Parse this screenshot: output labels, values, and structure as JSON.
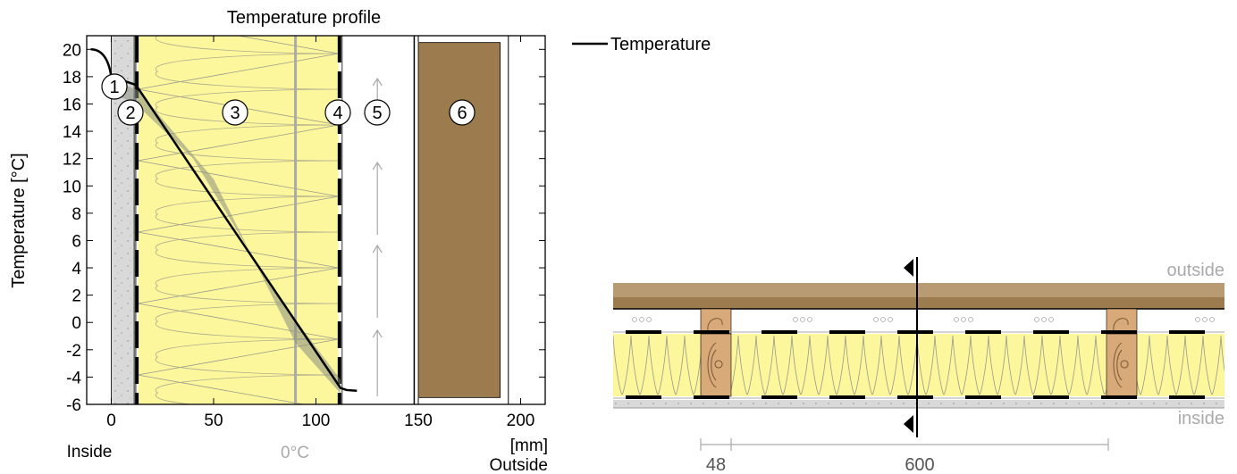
{
  "chart_data": {
    "type": "line",
    "title": "Temperature profile",
    "ylabel": "Temperature  [°C]",
    "xlabel": "[mm]",
    "xlim": [
      -12,
      212
    ],
    "ylim": [
      -6,
      21
    ],
    "x_ticks": [
      0,
      50,
      100,
      150,
      200
    ],
    "y_ticks": [
      20,
      18,
      16,
      14,
      12,
      10,
      8,
      6,
      4,
      2,
      0,
      -2,
      -4,
      -6
    ],
    "side_labels": {
      "inside": "Inside",
      "outside": "Outside",
      "zero": "0°C"
    },
    "legend": {
      "label": "Temperature",
      "position": "top-right"
    },
    "series": [
      {
        "name": "Temperature",
        "x": [
          -10,
          -5,
          0,
          12,
          112,
          115,
          120
        ],
        "y": [
          20.0,
          19.8,
          18.0,
          17.4,
          -4.8,
          -4.95,
          -5.0
        ]
      }
    ],
    "zero_line_x": 90,
    "layers": [
      {
        "label": "1",
        "x_from": 0,
        "x_to": 12,
        "color": "#d9d9d9"
      },
      {
        "label": "2",
        "x_from": 12,
        "x_to": 13,
        "color": "#000000"
      },
      {
        "label": "3",
        "x_from": 13,
        "x_to": 111,
        "color": "#fcf79d"
      },
      {
        "label": "4",
        "x_from": 111,
        "x_to": 112,
        "color": "#000000"
      },
      {
        "label": "5",
        "x_from": 112,
        "x_to": 148,
        "color": "#ffffff"
      },
      {
        "label": "6",
        "x_from": 150,
        "x_to": 190,
        "color": "#9c7b4f"
      }
    ]
  },
  "section": {
    "outside_label": "outside",
    "inside_label": "inside",
    "dim_stud": "48",
    "dim_spacing": "600"
  },
  "colors": {
    "insulation": "#fcf79d",
    "timber": "#9c7b4f",
    "timber_light": "#b89a73",
    "stud": "#d8a979",
    "plaster": "#d9d9d9",
    "grid": "#000000",
    "zero_line": "#aaaaaa"
  }
}
